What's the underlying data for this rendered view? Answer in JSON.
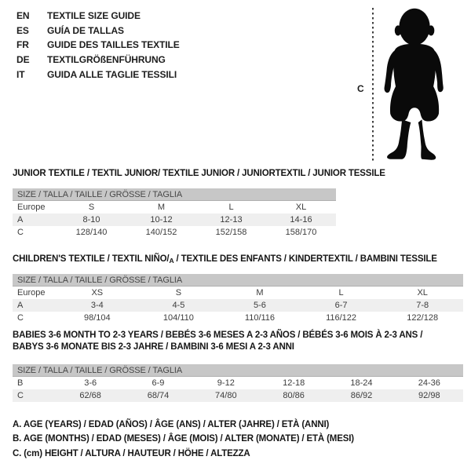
{
  "colors": {
    "page_bg": "#ffffff",
    "text": "#1d1d1d",
    "table_header_bg": "#c7c7c7",
    "row_shade": "#efefef",
    "silhouette": "#0a0a0a",
    "dotted_line": "#3f3f3f"
  },
  "languages": {
    "items": [
      {
        "code": "EN",
        "text": "TEXTILE SIZE GUIDE"
      },
      {
        "code": "ES",
        "text": "GUÍA DE TALLAS"
      },
      {
        "code": "FR",
        "text": "GUIDE DES TAILLES TEXTILE"
      },
      {
        "code": "DE",
        "text": "TEXTILGRÖßENFÜHRUNG"
      },
      {
        "code": "IT",
        "text": "GUIDA ALLE TAGLIE TESSILI"
      }
    ]
  },
  "figure": {
    "measure_label": "C"
  },
  "section_junior": {
    "title": "JUNIOR TEXTILE / TEXTIL JUNIOR/ TEXTILE JUNIOR / JUNIORTEXTIL / JUNIOR TESSILE",
    "table": {
      "header": "SIZE / TALLA / TAILLE / GRÖSSE / TAGLIA",
      "rows": [
        {
          "label": "Europe",
          "cells": [
            "S",
            "M",
            "L",
            "XL"
          ],
          "shaded": false
        },
        {
          "label": "A",
          "cells": [
            "8-10",
            "10-12",
            "12-13",
            "14-16"
          ],
          "shaded": true
        },
        {
          "label": "C",
          "cells": [
            "128/140",
            "140/152",
            "152/158",
            "158/170"
          ],
          "shaded": false
        }
      ]
    }
  },
  "section_children": {
    "title_before": "CHILDREN'S TEXTILE / TEXTIL NIÑO/",
    "title_sub": "A",
    "title_after": " / TEXTILE DES ENFANTS / KINDERTEXTIL / BAMBINI TESSILE",
    "table": {
      "header": "SIZE / TALLA / TAILLE / GRÖSSE / TAGLIA",
      "rows": [
        {
          "label": "Europe",
          "cells": [
            "XS",
            "S",
            "M",
            "L",
            "XL"
          ],
          "shaded": false
        },
        {
          "label": "A",
          "cells": [
            "3-4",
            "4-5",
            "5-6",
            "6-7",
            "7-8"
          ],
          "shaded": true
        },
        {
          "label": "C",
          "cells": [
            "98/104",
            "104/110",
            "110/116",
            "116/122",
            "122/128"
          ],
          "shaded": false
        }
      ]
    }
  },
  "section_babies": {
    "title_line1": "BABIES 3-6 MONTH TO 2-3 YEARS / BEBÉS 3-6 MESES A 2-3 AÑOS / BÉBÉS 3-6 MOIS À 2-3 ANS /",
    "title_line2": "BABYS 3-6 MONATE BIS 2-3 JAHRE / BAMBINI 3-6 MESI A 2-3 ANNI",
    "table": {
      "header": "SIZE / TALLA / TAILLE / GRÖSSE / TAGLIA",
      "rows": [
        {
          "label": "B",
          "cells": [
            "3-6",
            "6-9",
            "9-12",
            "12-18",
            "18-24",
            "24-36"
          ],
          "shaded": false
        },
        {
          "label": "C",
          "cells": [
            "62/68",
            "68/74",
            "74/80",
            "80/86",
            "86/92",
            "92/98"
          ],
          "shaded": true
        }
      ]
    }
  },
  "legend": {
    "lines": [
      "A. AGE (YEARS) / EDAD (AÑOS) / ÂGE (ANS) / ALTER (JAHRE) / ETÀ (ANNI)",
      "B. AGE (MONTHS) / EDAD (MESES) / ÂGE (MOIS) / ALTER (MONATE) / ETÀ (MESI)",
      "C. (cm) HEIGHT / ALTURA / HAUTEUR / HÖHE / ALTEZZA"
    ]
  }
}
